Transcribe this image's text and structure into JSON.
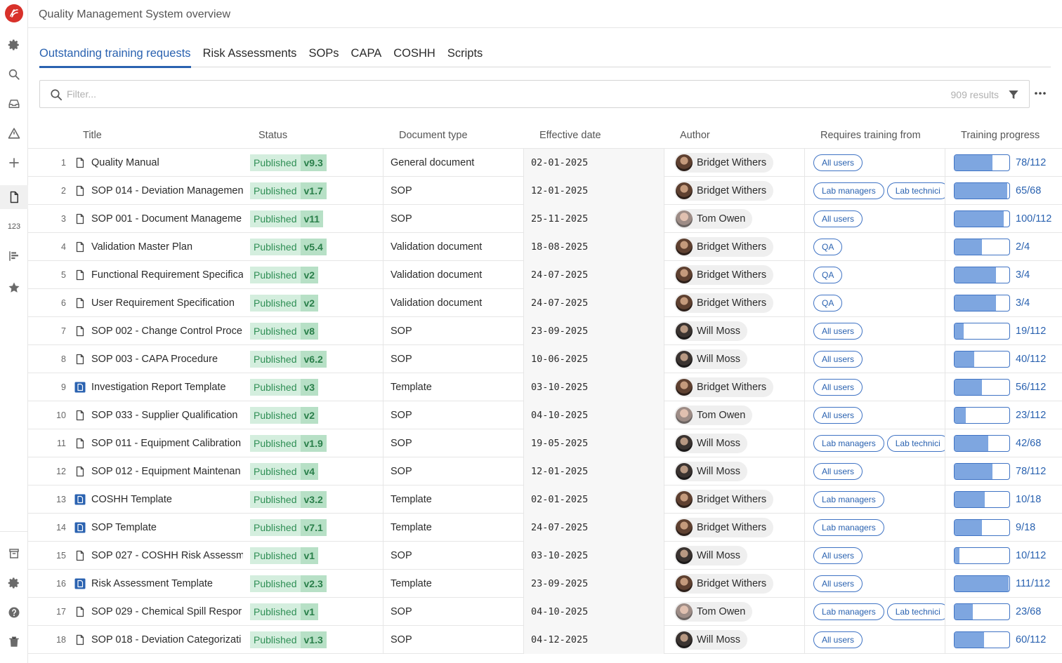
{
  "app": {
    "title": "Quality Management System overview"
  },
  "sidebar": {
    "numbers_label": "123"
  },
  "tabs": [
    {
      "label": "Outstanding training requests",
      "active": true
    },
    {
      "label": "Risk Assessments",
      "active": false
    },
    {
      "label": "SOPs",
      "active": false
    },
    {
      "label": "CAPA",
      "active": false
    },
    {
      "label": "COSHH",
      "active": false
    },
    {
      "label": "Scripts",
      "active": false
    }
  ],
  "filter": {
    "placeholder": "Filter...",
    "value": "",
    "result_count": "909 results"
  },
  "columns": {
    "title": "Title",
    "status": "Status",
    "doc_type": "Document type",
    "effective_date": "Effective date",
    "author": "Author",
    "requires_training": "Requires training from",
    "training_progress": "Training progress"
  },
  "colors": {
    "accent": "#2a62b0",
    "published_bg": "#d4eede",
    "published_text": "#2f8f55",
    "brand": "#d8312a"
  },
  "rows": [
    {
      "num": "1",
      "title": "Quality Manual",
      "icon": "document-icon",
      "status": "Published",
      "version": "v9.3",
      "doc_type": "General document",
      "date": "02-01-2025",
      "author": "Bridget Withers",
      "training": [
        "All users"
      ],
      "progress": "78/112",
      "fraction": 0.696
    },
    {
      "num": "2",
      "title": "SOP 014 - Deviation Managemen",
      "icon": "document-icon",
      "status": "Published",
      "version": "v1.7",
      "doc_type": "SOP",
      "date": "12-01-2025",
      "author": "Bridget Withers",
      "training": [
        "Lab managers",
        "Lab technici"
      ],
      "progress": "65/68",
      "fraction": 0.956
    },
    {
      "num": "3",
      "title": "SOP 001 - Document Manageme",
      "icon": "document-icon",
      "status": "Published",
      "version": "v11",
      "doc_type": "SOP",
      "date": "25-11-2025",
      "author": "Tom Owen",
      "training": [
        "All users"
      ],
      "progress": "100/112",
      "fraction": 0.893
    },
    {
      "num": "4",
      "title": "Validation Master Plan",
      "icon": "document-icon",
      "status": "Published",
      "version": "v5.4",
      "doc_type": "Validation document",
      "date": "18-08-2025",
      "author": "Bridget Withers",
      "training": [
        "QA"
      ],
      "progress": "2/4",
      "fraction": 0.5
    },
    {
      "num": "5",
      "title": "Functional Requirement Specifica",
      "icon": "document-icon",
      "status": "Published",
      "version": "v2",
      "doc_type": "Validation document",
      "date": "24-07-2025",
      "author": "Bridget Withers",
      "training": [
        "QA"
      ],
      "progress": "3/4",
      "fraction": 0.75
    },
    {
      "num": "6",
      "title": "User Requirement Specification",
      "icon": "document-icon",
      "status": "Published",
      "version": "v2",
      "doc_type": "Validation document",
      "date": "24-07-2025",
      "author": "Bridget Withers",
      "training": [
        "QA"
      ],
      "progress": "3/4",
      "fraction": 0.75
    },
    {
      "num": "7",
      "title": "SOP 002 - Change Control Proce",
      "icon": "document-icon",
      "status": "Published",
      "version": "v8",
      "doc_type": "SOP",
      "date": "23-09-2025",
      "author": "Will Moss",
      "training": [
        "All users"
      ],
      "progress": "19/112",
      "fraction": 0.17
    },
    {
      "num": "8",
      "title": "SOP 003 - CAPA Procedure",
      "icon": "document-icon",
      "status": "Published",
      "version": "v6.2",
      "doc_type": "SOP",
      "date": "10-06-2025",
      "author": "Will Moss",
      "training": [
        "All users"
      ],
      "progress": "40/112",
      "fraction": 0.357
    },
    {
      "num": "9",
      "title": "Investigation Report Template",
      "icon": "template-icon",
      "status": "Published",
      "version": "v3",
      "doc_type": "Template",
      "date": "03-10-2025",
      "author": "Bridget Withers",
      "training": [
        "All users"
      ],
      "progress": "56/112",
      "fraction": 0.5
    },
    {
      "num": "10",
      "title": "SOP 033 - Supplier Qualification",
      "icon": "document-icon",
      "status": "Published",
      "version": "v2",
      "doc_type": "SOP",
      "date": "04-10-2025",
      "author": "Tom Owen",
      "training": [
        "All users"
      ],
      "progress": "23/112",
      "fraction": 0.205
    },
    {
      "num": "11",
      "title": "SOP 011 - Equipment Calibration",
      "icon": "document-icon",
      "status": "Published",
      "version": "v1.9",
      "doc_type": "SOP",
      "date": "19-05-2025",
      "author": "Will Moss",
      "training": [
        "Lab managers",
        "Lab technici"
      ],
      "progress": "42/68",
      "fraction": 0.618
    },
    {
      "num": "12",
      "title": "SOP 012 - Equipment Maintenan",
      "icon": "document-icon",
      "status": "Published",
      "version": "v4",
      "doc_type": "SOP",
      "date": "12-01-2025",
      "author": "Will Moss",
      "training": [
        "All users"
      ],
      "progress": "78/112",
      "fraction": 0.696
    },
    {
      "num": "13",
      "title": "COSHH Template",
      "icon": "template-icon",
      "status": "Published",
      "version": "v3.2",
      "doc_type": "Template",
      "date": "02-01-2025",
      "author": "Bridget Withers",
      "training": [
        "Lab managers"
      ],
      "progress": "10/18",
      "fraction": 0.556
    },
    {
      "num": "14",
      "title": "SOP Template",
      "icon": "template-icon",
      "status": "Published",
      "version": "v7.1",
      "doc_type": "Template",
      "date": "24-07-2025",
      "author": "Bridget Withers",
      "training": [
        "Lab managers"
      ],
      "progress": "9/18",
      "fraction": 0.5
    },
    {
      "num": "15",
      "title": "SOP 027 - COSHH Risk Assessm",
      "icon": "document-icon",
      "status": "Published",
      "version": "v1",
      "doc_type": "SOP",
      "date": "03-10-2025",
      "author": "Will Moss",
      "training": [
        "All users"
      ],
      "progress": "10/112",
      "fraction": 0.089
    },
    {
      "num": "16",
      "title": "Risk Assessment Template",
      "icon": "template-icon",
      "status": "Published",
      "version": "v2.3",
      "doc_type": "Template",
      "date": "23-09-2025",
      "author": "Bridget Withers",
      "training": [
        "All users"
      ],
      "progress": "111/112",
      "fraction": 0.991
    },
    {
      "num": "17",
      "title": "SOP 029 - Chemical Spill Respor",
      "icon": "document-icon",
      "status": "Published",
      "version": "v1",
      "doc_type": "SOP",
      "date": "04-10-2025",
      "author": "Tom Owen",
      "training": [
        "Lab managers",
        "Lab technici"
      ],
      "progress": "23/68",
      "fraction": 0.338
    },
    {
      "num": "18",
      "title": "SOP 018 - Deviation Categorizati",
      "icon": "document-icon",
      "status": "Published",
      "version": "v1.3",
      "doc_type": "SOP",
      "date": "04-12-2025",
      "author": "Will Moss",
      "training": [
        "All users"
      ],
      "progress": "60/112",
      "fraction": 0.536
    }
  ]
}
